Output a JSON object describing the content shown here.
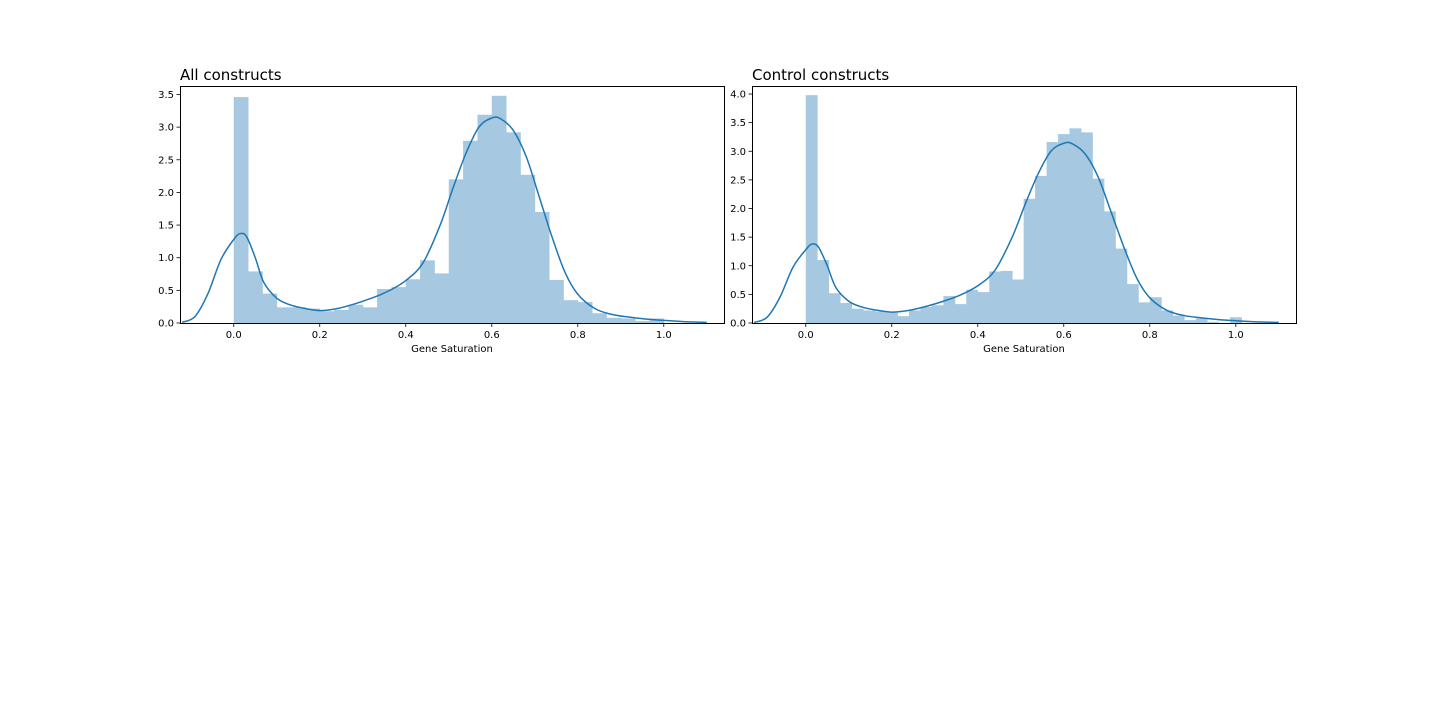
{
  "colors": {
    "bar": "#a6c8e0",
    "kde": "#1f77b4",
    "axes": "#000000"
  },
  "chart_data": [
    {
      "type": "histogram",
      "title": "All constructs",
      "xlabel": "Gene Saturation",
      "ylabel": "",
      "xlim": [
        -0.125,
        1.14
      ],
      "ylim": [
        0,
        3.63
      ],
      "xticks": [
        0.0,
        0.2,
        0.4,
        0.6,
        0.8,
        1.0
      ],
      "xtick_labels": [
        "0.0",
        "0.2",
        "0.4",
        "0.6",
        "0.8",
        "1.0"
      ],
      "yticks": [
        0.0,
        0.5,
        1.0,
        1.5,
        2.0,
        2.5,
        3.0,
        3.5
      ],
      "ytick_labels": [
        "0.0",
        "0.5",
        "1.0",
        "1.5",
        "2.0",
        "2.5",
        "3.0",
        "3.5"
      ],
      "bin_width": 0.0333,
      "bin_starts": [
        0.0,
        0.0333,
        0.0667,
        0.1,
        0.1333,
        0.1667,
        0.2,
        0.2333,
        0.2667,
        0.3,
        0.3333,
        0.3667,
        0.4,
        0.4333,
        0.4667,
        0.5,
        0.5333,
        0.5667,
        0.6,
        0.6333,
        0.6667,
        0.7,
        0.7333,
        0.7667,
        0.8,
        0.8333,
        0.8667,
        0.9,
        0.9333,
        0.9667
      ],
      "densities": [
        3.46,
        0.79,
        0.45,
        0.24,
        0.24,
        0.22,
        0.18,
        0.2,
        0.28,
        0.24,
        0.52,
        0.55,
        0.67,
        0.96,
        0.76,
        2.2,
        2.79,
        3.19,
        3.48,
        2.92,
        2.27,
        1.7,
        0.66,
        0.35,
        0.32,
        0.15,
        0.08,
        0.07,
        0.03,
        0.07
      ],
      "kde": {
        "x": [
          -0.12,
          -0.09,
          -0.06,
          -0.03,
          0.0,
          0.015,
          0.03,
          0.05,
          0.07,
          0.1,
          0.13,
          0.16,
          0.2,
          0.24,
          0.28,
          0.32,
          0.36,
          0.4,
          0.44,
          0.48,
          0.51,
          0.54,
          0.57,
          0.6,
          0.62,
          0.65,
          0.68,
          0.71,
          0.74,
          0.77,
          0.8,
          0.84,
          0.88,
          0.92,
          0.96,
          1.0,
          1.05,
          1.1
        ],
        "y": [
          0.01,
          0.1,
          0.45,
          0.97,
          1.28,
          1.37,
          1.32,
          1.0,
          0.62,
          0.38,
          0.28,
          0.23,
          0.19,
          0.22,
          0.29,
          0.38,
          0.49,
          0.65,
          0.92,
          1.5,
          2.07,
          2.6,
          3.0,
          3.14,
          3.13,
          2.95,
          2.55,
          1.94,
          1.32,
          0.78,
          0.44,
          0.22,
          0.13,
          0.09,
          0.06,
          0.04,
          0.02,
          0.01
        ]
      }
    },
    {
      "type": "histogram",
      "title": "Control constructs",
      "xlabel": "Gene Saturation",
      "ylabel": "",
      "xlim": [
        -0.125,
        1.14
      ],
      "ylim": [
        0,
        4.14
      ],
      "xticks": [
        0.0,
        0.2,
        0.4,
        0.6,
        0.8,
        1.0
      ],
      "xtick_labels": [
        "0.0",
        "0.2",
        "0.4",
        "0.6",
        "0.8",
        "1.0"
      ],
      "yticks": [
        0.0,
        0.5,
        1.0,
        1.5,
        2.0,
        2.5,
        3.0,
        3.5,
        4.0
      ],
      "ytick_labels": [
        "0.0",
        "0.5",
        "1.0",
        "1.5",
        "2.0",
        "2.5",
        "3.0",
        "3.5",
        "4.0"
      ],
      "bin_width": 0.0267,
      "bin_starts": [
        0.0,
        0.0267,
        0.0533,
        0.08,
        0.1067,
        0.1333,
        0.16,
        0.1867,
        0.2133,
        0.24,
        0.2667,
        0.2933,
        0.32,
        0.3467,
        0.3733,
        0.4,
        0.4267,
        0.4533,
        0.48,
        0.5067,
        0.5333,
        0.56,
        0.5867,
        0.6133,
        0.64,
        0.6667,
        0.6933,
        0.72,
        0.7467,
        0.7733,
        0.8,
        0.8267,
        0.8533,
        0.88,
        0.9067,
        0.9333,
        0.96,
        0.9867
      ],
      "densities": [
        3.98,
        1.1,
        0.52,
        0.35,
        0.25,
        0.22,
        0.2,
        0.18,
        0.12,
        0.22,
        0.28,
        0.31,
        0.47,
        0.33,
        0.58,
        0.54,
        0.9,
        0.91,
        0.76,
        2.17,
        2.57,
        3.16,
        3.3,
        3.4,
        3.33,
        2.52,
        1.95,
        1.3,
        0.68,
        0.36,
        0.45,
        0.22,
        0.13,
        0.05,
        0.08,
        0.02,
        0.0,
        0.1
      ],
      "kde": {
        "x": [
          -0.12,
          -0.09,
          -0.06,
          -0.03,
          0.0,
          0.015,
          0.03,
          0.05,
          0.07,
          0.1,
          0.13,
          0.16,
          0.2,
          0.24,
          0.28,
          0.32,
          0.36,
          0.4,
          0.44,
          0.48,
          0.51,
          0.54,
          0.57,
          0.6,
          0.62,
          0.65,
          0.68,
          0.71,
          0.74,
          0.77,
          0.8,
          0.84,
          0.88,
          0.92,
          0.96,
          1.0,
          1.05,
          1.1
        ],
        "y": [
          0.01,
          0.1,
          0.45,
          0.97,
          1.28,
          1.38,
          1.32,
          1.0,
          0.62,
          0.38,
          0.28,
          0.23,
          0.19,
          0.22,
          0.29,
          0.38,
          0.49,
          0.65,
          0.92,
          1.5,
          2.07,
          2.6,
          3.0,
          3.14,
          3.13,
          2.95,
          2.55,
          1.94,
          1.32,
          0.78,
          0.44,
          0.22,
          0.13,
          0.09,
          0.06,
          0.04,
          0.02,
          0.01
        ]
      }
    }
  ]
}
